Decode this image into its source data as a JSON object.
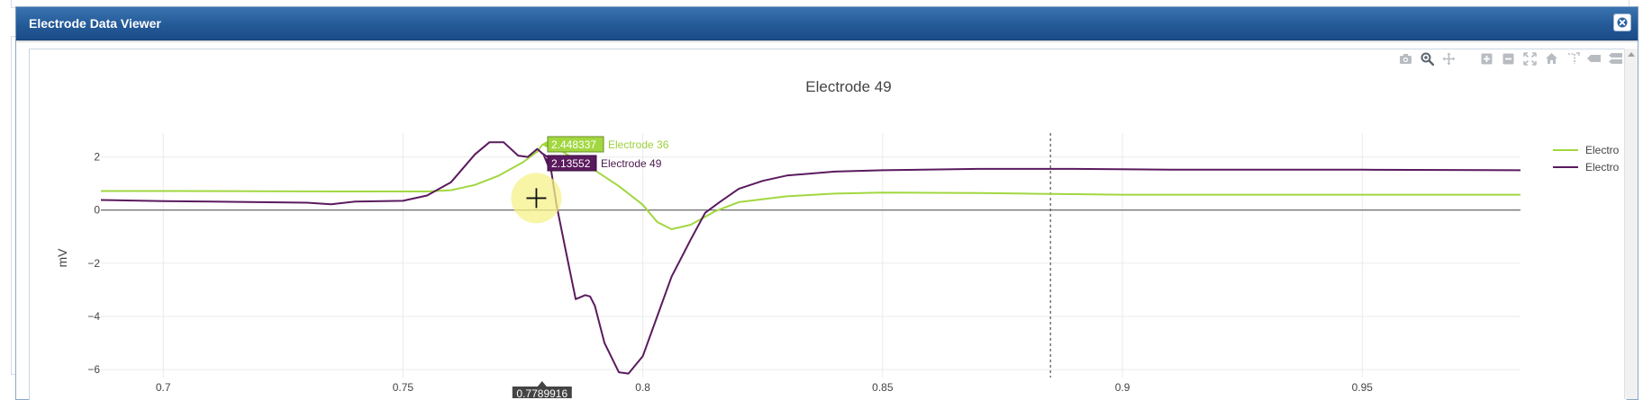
{
  "dialog": {
    "title": "Electrode Data Viewer",
    "close_icon": "close-icon"
  },
  "modebar": {
    "icons": [
      "camera-icon",
      "zoom-icon",
      "pan-icon",
      "zoom-in-icon",
      "zoom-out-icon",
      "autoscale-icon",
      "home-icon",
      "spike-lines-icon",
      "hover-closest-icon",
      "hover-compare-icon"
    ]
  },
  "colors": {
    "titlebar": "#245a98",
    "electrode36": "#a2d740",
    "electrode49": "#5a1a5e",
    "spike_line": "#555555"
  },
  "chart_data": {
    "type": "line",
    "title": "Electrode 49",
    "ylabel": "mV",
    "xlabel": "",
    "xlim": [
      0.687,
      0.983
    ],
    "ylim": [
      -6.3,
      2.9
    ],
    "x_ticks": [
      "0.7",
      "0.75",
      "0.8",
      "0.85",
      "0.9",
      "0.95"
    ],
    "x_tick_values": [
      0.7,
      0.75,
      0.8,
      0.85,
      0.9,
      0.95
    ],
    "y_ticks": [
      "2",
      "0",
      "−2",
      "−4",
      "−6"
    ],
    "y_tick_values": [
      2,
      0,
      -2,
      -4,
      -6
    ],
    "grid": true,
    "zero_line": true,
    "legend": {
      "placement": "right",
      "entries": [
        "Electro",
        "Electro"
      ]
    },
    "vertical_marker_x": 0.885,
    "series": [
      {
        "name": "Electrode 36",
        "x": [
          0.687,
          0.7,
          0.72,
          0.74,
          0.755,
          0.76,
          0.765,
          0.77,
          0.775,
          0.778,
          0.779,
          0.78,
          0.781,
          0.782,
          0.785,
          0.79,
          0.795,
          0.8,
          0.803,
          0.806,
          0.81,
          0.815,
          0.82,
          0.83,
          0.84,
          0.85,
          0.86,
          0.87,
          0.88,
          0.89,
          0.9,
          0.92,
          0.94,
          0.96,
          0.983
        ],
        "y": [
          0.72,
          0.72,
          0.71,
          0.7,
          0.7,
          0.75,
          0.95,
          1.3,
          1.8,
          2.2,
          2.45,
          2.55,
          2.5,
          2.35,
          2.0,
          1.5,
          0.9,
          0.2,
          -0.45,
          -0.72,
          -0.55,
          -0.05,
          0.3,
          0.52,
          0.62,
          0.66,
          0.65,
          0.64,
          0.62,
          0.6,
          0.58,
          0.58,
          0.58,
          0.58,
          0.58
        ]
      },
      {
        "name": "Electrode 49",
        "x": [
          0.687,
          0.7,
          0.71,
          0.72,
          0.73,
          0.735,
          0.74,
          0.75,
          0.755,
          0.76,
          0.765,
          0.768,
          0.771,
          0.774,
          0.776,
          0.778,
          0.779,
          0.7805,
          0.782,
          0.784,
          0.786,
          0.788,
          0.789,
          0.79,
          0.792,
          0.795,
          0.797,
          0.8,
          0.803,
          0.806,
          0.81,
          0.813,
          0.816,
          0.82,
          0.825,
          0.83,
          0.84,
          0.85,
          0.87,
          0.89,
          0.91,
          0.93,
          0.95,
          0.983
        ],
        "y": [
          0.38,
          0.34,
          0.32,
          0.3,
          0.28,
          0.22,
          0.32,
          0.35,
          0.55,
          1.05,
          2.1,
          2.55,
          2.55,
          2.05,
          2.0,
          2.3,
          2.14,
          1.95,
          0.2,
          -1.6,
          -3.35,
          -3.2,
          -3.25,
          -3.6,
          -5.0,
          -6.1,
          -6.15,
          -5.5,
          -4.0,
          -2.5,
          -1.1,
          -0.1,
          0.3,
          0.8,
          1.1,
          1.3,
          1.45,
          1.5,
          1.55,
          1.55,
          1.52,
          1.52,
          1.52,
          1.5
        ]
      }
    ],
    "hover": {
      "x_label": "0.7789916",
      "x_value": 0.7789916,
      "labels": [
        {
          "series": "Electrode 36",
          "value": "2.448337",
          "y": 2.448337
        },
        {
          "series": "Electrode 49",
          "value": "2.13552",
          "y": 2.13552
        }
      ]
    },
    "cursor": {
      "x": 0.7778,
      "y": 0.45
    }
  }
}
